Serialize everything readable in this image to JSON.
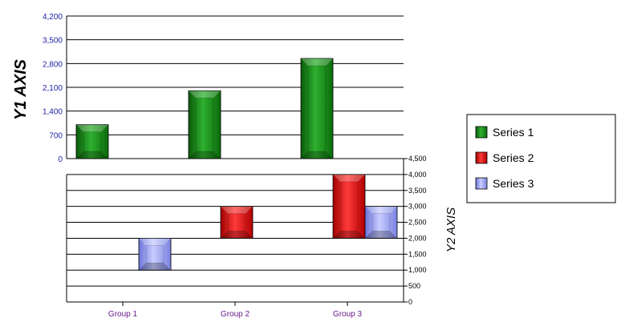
{
  "chart_data": {
    "type": "bar",
    "categories": [
      "Group 1",
      "Group 2",
      "Group 3"
    ],
    "series": [
      {
        "name": "Series 1",
        "axis": "y1",
        "values": [
          1000,
          2000,
          2950
        ],
        "color": "#1a8a1a"
      },
      {
        "name": "Series 2",
        "axis": "y2",
        "values": [
          null,
          [
            2000,
            3000
          ],
          [
            2000,
            4000
          ]
        ],
        "color": "#ee1111"
      },
      {
        "name": "Series 3",
        "axis": "y2",
        "values": [
          [
            1000,
            2000
          ],
          null,
          [
            2000,
            3000
          ]
        ],
        "color": "#9ea6ff"
      }
    ],
    "y1": {
      "label": "Y1 AXIS",
      "ylim": [
        0,
        4200
      ],
      "ticks": [
        0,
        700,
        1400,
        2100,
        2800,
        3500,
        4200
      ],
      "tick_labels": [
        "0",
        "700",
        "1,400",
        "2,100",
        "2,800",
        "3,500",
        "4,200"
      ]
    },
    "y2": {
      "label": "Y2 AXIS",
      "ylim": [
        0,
        4500
      ],
      "ticks": [
        0,
        500,
        1000,
        1500,
        2000,
        2500,
        3000,
        3500,
        4000,
        4500
      ],
      "tick_labels": [
        "0",
        "500",
        "1,000",
        "1,500",
        "2,000",
        "2,500",
        "3,000",
        "3,500",
        "4,000",
        "4,500"
      ]
    },
    "grid": true,
    "legend": {
      "position": "right",
      "entries": [
        "Series 1",
        "Series 2",
        "Series 3"
      ]
    }
  }
}
